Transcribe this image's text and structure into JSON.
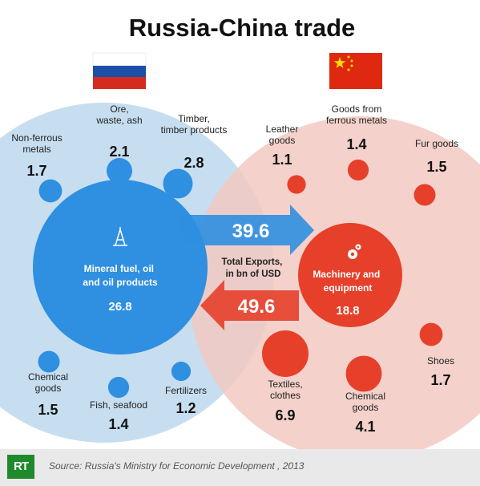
{
  "title": "Russia-China trade",
  "colors": {
    "russia_blue": "#2f8fe0",
    "russia_light": "#c6def0",
    "china_red": "#e6402b",
    "china_light": "#f2c9c2",
    "rt_green": "#1f8a2c"
  },
  "flags": {
    "russia": "flag-russia",
    "china": "flag-china"
  },
  "chart_data": {
    "type": "bubble",
    "title": "Russia-China trade",
    "unit": "bn of USD",
    "exports_label": "Total Exports, in bn of USD",
    "flows": [
      {
        "from": "Russia",
        "to": "China",
        "value": 39.6,
        "value_label": "39.6"
      },
      {
        "from": "China",
        "to": "Russia",
        "value": 49.6,
        "value_label": "49.6"
      }
    ],
    "russia_exports": [
      {
        "label": "Mineral fuel, oil and oil products",
        "value": 26.8,
        "value_label": "26.8",
        "main": true
      },
      {
        "label": "Non-ferrous metals",
        "value": 1.7,
        "value_label": "1.7"
      },
      {
        "label": "Ore, waste, ash",
        "value": 2.1,
        "value_label": "2.1"
      },
      {
        "label": "Timber, timber products",
        "value": 2.8,
        "value_label": "2.8"
      },
      {
        "label": "Chemical goods",
        "value": 1.5,
        "value_label": "1.5"
      },
      {
        "label": "Fish, seafood",
        "value": 1.4,
        "value_label": "1.4"
      },
      {
        "label": "Fertilizers",
        "value": 1.2,
        "value_label": "1.2"
      }
    ],
    "china_exports": [
      {
        "label": "Machinery and equipment",
        "value": 18.8,
        "value_label": "18.8",
        "main": true
      },
      {
        "label": "Leather goods",
        "value": 1.1,
        "value_label": "1.1"
      },
      {
        "label": "Goods from ferrous metals",
        "value": 1.4,
        "value_label": "1.4"
      },
      {
        "label": "Fur goods",
        "value": 1.5,
        "value_label": "1.5"
      },
      {
        "label": "Textiles, clothes",
        "value": 6.9,
        "value_label": "6.9"
      },
      {
        "label": "Chemical goods",
        "value": 4.1,
        "value_label": "4.1"
      },
      {
        "label": "Shoes",
        "value": 1.7,
        "value_label": "1.7"
      }
    ]
  },
  "footer": {
    "logo": "RT",
    "source": "Source: Russia's Ministry for Economic Development , 2013"
  }
}
